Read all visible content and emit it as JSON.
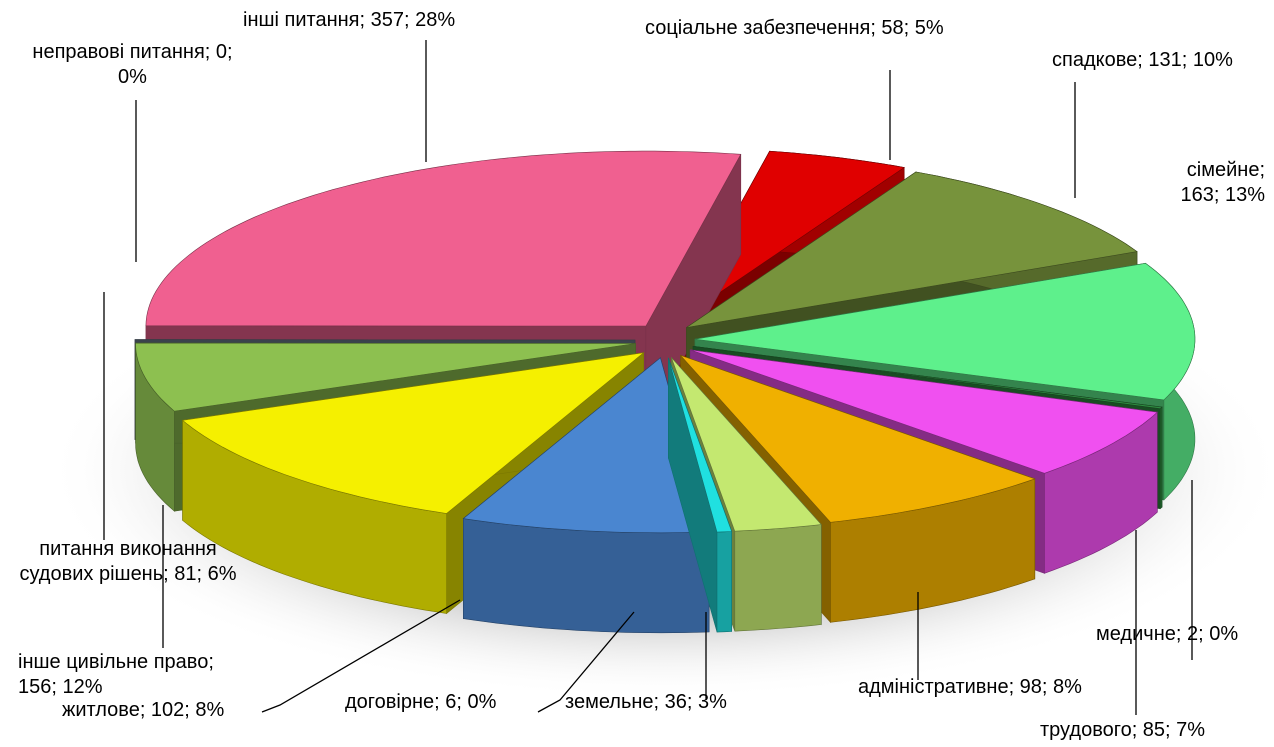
{
  "chart_data": {
    "type": "pie3d",
    "categories": [
      "соціальне забезпечення; 58; 5%",
      "спадкове; 131; 10%",
      "сімейне; 163; 13%",
      "медичне; 2; 0%",
      "трудового; 85; 7%",
      "адміністративне; 98; 8%",
      "земельне; 36; 3%",
      "договірне; 6; 0%",
      "житлове; 102; 8%",
      "інше цивільне право; 156; 12%",
      "питання виконання судових рішень; 81; 6%",
      "неправові питання; 0; 0%",
      "інші питання; 357; 28%"
    ],
    "values": [
      58,
      131,
      163,
      2,
      85,
      98,
      36,
      6,
      102,
      156,
      81,
      0,
      357
    ],
    "colors": [
      "#e00000",
      "#77933c",
      "#5ef08c",
      "#2e8b40",
      "#f050f0",
      "#f0b000",
      "#c4e870",
      "#20e0e0",
      "#4a86d0",
      "#f5f000",
      "#8dc050",
      "#6a7a8a",
      "#f06090"
    ]
  }
}
